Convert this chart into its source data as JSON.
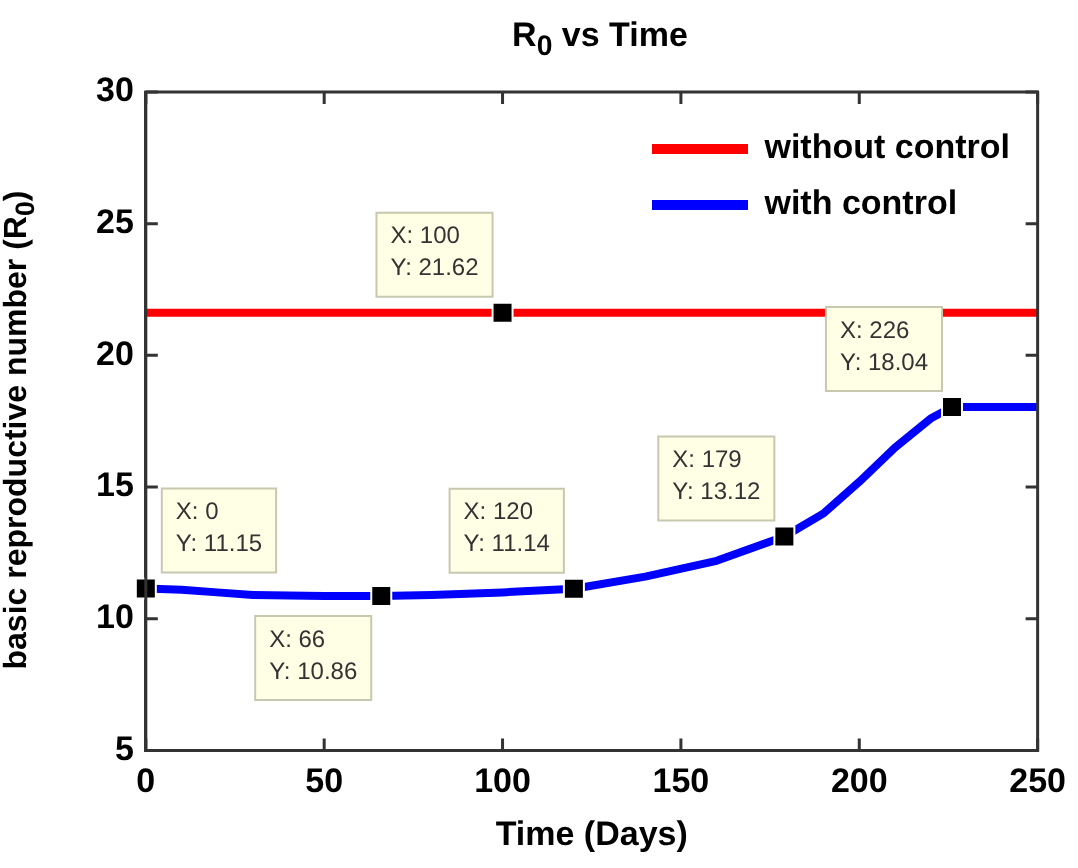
{
  "chart_data": {
    "type": "line",
    "title": "R$_{0}$ vs Time",
    "xlabel": "Time (Days)",
    "ylabel": "basic reproductive number (R$_{0}$)",
    "xlim": [
      0,
      250
    ],
    "xticks": [
      0,
      50,
      100,
      150,
      200,
      250
    ],
    "ylim": [
      5,
      30
    ],
    "yticks": [
      5,
      10,
      15,
      20,
      25,
      30
    ],
    "grid": false,
    "legend": "top right",
    "marker": "none",
    "line_style": "solid",
    "series": [
      {
        "name": "without control",
        "color": "#ff0000",
        "x": [
          0,
          250
        ],
        "values": [
          21.62,
          21.62
        ]
      },
      {
        "name": "with control",
        "color": "#0000ff",
        "x": [
          0,
          10,
          20,
          30,
          50,
          66,
          80,
          100,
          120,
          140,
          160,
          179,
          190,
          200,
          210,
          220,
          226,
          250
        ],
        "values": [
          11.15,
          11.1,
          11.0,
          10.9,
          10.86,
          10.86,
          10.9,
          11.0,
          11.14,
          11.6,
          12.2,
          13.12,
          14.0,
          15.2,
          16.5,
          17.6,
          18.04,
          18.04
        ]
      }
    ],
    "annotations": [
      {
        "text": "X: 0\nY: 11.15",
        "x": 0,
        "y": 11.15
      },
      {
        "text": "X: 66\nY: 10.86",
        "x": 66,
        "y": 10.86
      },
      {
        "text": "X: 100\nY: 21.62",
        "x": 100,
        "y": 21.62
      },
      {
        "text": "X: 120\nY: 11.14",
        "x": 120,
        "y": 11.14
      },
      {
        "text": "X: 179\nY: 13.12",
        "x": 179,
        "y": 13.12
      },
      {
        "text": "X: 226\nY: 18.04",
        "x": 226,
        "y": 18.04
      }
    ]
  }
}
